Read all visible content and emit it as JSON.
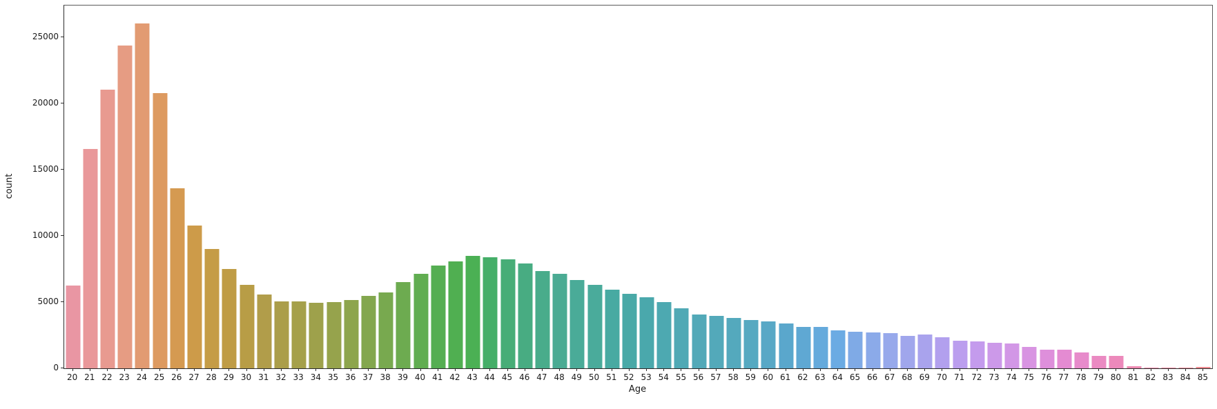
{
  "chart_data": {
    "type": "bar",
    "title": "",
    "xlabel": "Age",
    "ylabel": "count",
    "grid": false,
    "legend": null,
    "ylim": [
      0,
      27400
    ],
    "yticks": [
      0,
      5000,
      10000,
      15000,
      20000,
      25000
    ],
    "categories": [
      20,
      21,
      22,
      23,
      24,
      25,
      26,
      27,
      28,
      29,
      30,
      31,
      32,
      33,
      34,
      35,
      36,
      37,
      38,
      39,
      40,
      41,
      42,
      43,
      44,
      45,
      46,
      47,
      48,
      49,
      50,
      51,
      52,
      53,
      54,
      55,
      56,
      57,
      58,
      59,
      60,
      61,
      62,
      63,
      64,
      65,
      66,
      67,
      68,
      69,
      70,
      71,
      72,
      73,
      74,
      75,
      76,
      77,
      78,
      79,
      80,
      81,
      82,
      83,
      84,
      85
    ],
    "values": [
      6250,
      16550,
      21050,
      24400,
      26050,
      20800,
      13600,
      10800,
      9000,
      7500,
      6300,
      5590,
      5070,
      5070,
      4930,
      4980,
      5160,
      5470,
      5710,
      6530,
      7150,
      7750,
      8050,
      8500,
      8400,
      8210,
      7920,
      7360,
      7130,
      6650,
      6300,
      5940,
      5640,
      5360,
      5020,
      4520,
      4060,
      3960,
      3820,
      3630,
      3540,
      3390,
      3110,
      3110,
      2880,
      2760,
      2720,
      2640,
      2450,
      2540,
      2340,
      2060,
      2030,
      1930,
      1860,
      1615,
      1410,
      1420,
      1200,
      950,
      930,
      150,
      60,
      70,
      70,
      80
    ],
    "bar_colors": [
      "#e996a3",
      "#e9989a",
      "#e89a90",
      "#e69c83",
      "#e29b72",
      "#dd9a60",
      "#d59a51",
      "#cd9b49",
      "#c59c46",
      "#bf9c45",
      "#b89d46",
      "#b19d4a",
      "#ab9e4a",
      "#a5a04a",
      "#9ea14b",
      "#96a34c",
      "#8da54d",
      "#83a74e",
      "#78a94f",
      "#6dab50",
      "#61ad51",
      "#55ae52",
      "#50af51",
      "#4bb054",
      "#45ae68",
      "#47ad77",
      "#48ac82",
      "#49ac8b",
      "#4aab93",
      "#4aab98",
      "#4aab9b",
      "#48aaa2",
      "#49a9a7",
      "#4aa8ac",
      "#4da9b1",
      "#50a9b5",
      "#52a9b8",
      "#53a9ba",
      "#54a9bd",
      "#56a9c1",
      "#58a8c6",
      "#5aa7cc",
      "#5fa8d3",
      "#65aadc",
      "#6babe3",
      "#7faae6",
      "#8baae9",
      "#97a9eb",
      "#a0a6ec",
      "#a9a3ed",
      "#b2a0ee",
      "#bb9eee",
      "#c49bed",
      "#cc99e9",
      "#d297e6",
      "#d894e2",
      "#de8fdb",
      "#e48bd2",
      "#e78bcb",
      "#ea8ac2",
      "#ec89bb",
      "#ee8ab2",
      "#ef8aaa",
      "#f08aa2",
      "#f08b9a",
      "#f08c92"
    ]
  }
}
